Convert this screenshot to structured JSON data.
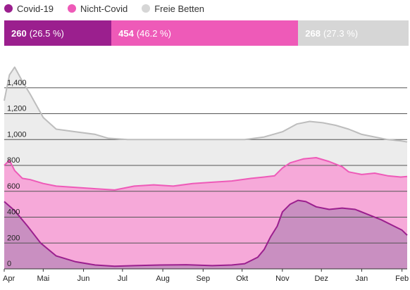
{
  "legend": [
    {
      "label": "Covid-19",
      "color": "#9b1f8e"
    },
    {
      "label": "Nicht-Covid",
      "color": "#ee5ab8"
    },
    {
      "label": "Freie Betten",
      "color": "#d6d6d6"
    }
  ],
  "summary_bar": {
    "covid": {
      "count": "260",
      "pct": "(26.5 %)",
      "fraction": 0.265,
      "color": "#9b1f8e"
    },
    "non_covid": {
      "count": "454",
      "pct": "(46.2 %)",
      "fraction": 0.462,
      "color": "#ee5ab8"
    },
    "free": {
      "count": "268",
      "pct": "(27.3 %)",
      "fraction": 0.273,
      "color": "#d6d6d6"
    }
  },
  "chart_data": {
    "type": "area",
    "stacked": true,
    "ylim": [
      0,
      1600
    ],
    "y_ticks": [
      0,
      200,
      400,
      600,
      800,
      1000,
      1200,
      1400
    ],
    "y_tick_labels": [
      "0",
      "200",
      "400",
      "600",
      "800",
      "1,000",
      "1,200",
      "1,400"
    ],
    "x_range": [
      0,
      310
    ],
    "x_ticks": [
      {
        "label": "Apr",
        "day": 0
      },
      {
        "label": "Mai",
        "day": 30
      },
      {
        "label": "Jun",
        "day": 61
      },
      {
        "label": "Jul",
        "day": 91
      },
      {
        "label": "Aug",
        "day": 122
      },
      {
        "label": "Sep",
        "day": 153
      },
      {
        "label": "Okt",
        "day": 183
      },
      {
        "label": "Nov",
        "day": 214
      },
      {
        "label": "Dez",
        "day": 244
      },
      {
        "label": "Jan",
        "day": 275
      },
      {
        "label": "Feb",
        "day": 306
      }
    ],
    "grid": "horizontal",
    "series": [
      {
        "name": "Covid-19",
        "color": "#9b1f8e",
        "fill": "#c98fc1",
        "x": [
          0,
          8,
          18,
          28,
          40,
          55,
          70,
          85,
          100,
          120,
          140,
          160,
          175,
          185,
          195,
          200,
          205,
          210,
          214,
          220,
          226,
          232,
          240,
          250,
          260,
          270,
          280,
          290,
          300,
          306,
          310
        ],
        "y": [
          520,
          450,
          330,
          200,
          100,
          55,
          30,
          20,
          25,
          30,
          32,
          25,
          30,
          40,
          90,
          150,
          250,
          330,
          440,
          500,
          530,
          520,
          480,
          460,
          470,
          460,
          420,
          380,
          330,
          300,
          260
        ]
      },
      {
        "name": "Total Covid-19 + Nicht-Covid",
        "color": "#ee5ab8",
        "fill": "#f6a9d9",
        "x": [
          0,
          4,
          8,
          14,
          20,
          30,
          40,
          55,
          70,
          85,
          100,
          115,
          130,
          145,
          160,
          175,
          190,
          200,
          208,
          214,
          220,
          230,
          240,
          250,
          260,
          265,
          275,
          285,
          295,
          305,
          310
        ],
        "y": [
          800,
          840,
          760,
          700,
          690,
          660,
          640,
          630,
          620,
          610,
          640,
          650,
          640,
          660,
          670,
          680,
          700,
          710,
          720,
          780,
          820,
          850,
          860,
          830,
          790,
          750,
          730,
          740,
          720,
          710,
          714
        ]
      },
      {
        "name": "Total inkl. Freie Betten",
        "color": "#bdbdbd",
        "fill": "#ececec",
        "x": [
          0,
          4,
          8,
          14,
          20,
          30,
          40,
          55,
          70,
          80,
          95,
          110,
          130,
          150,
          170,
          185,
          200,
          214,
          225,
          235,
          245,
          255,
          265,
          275,
          285,
          295,
          305,
          310
        ],
        "y": [
          1300,
          1500,
          1560,
          1450,
          1350,
          1170,
          1080,
          1060,
          1040,
          1010,
          1000,
          1000,
          1000,
          1000,
          1000,
          1000,
          1020,
          1060,
          1120,
          1140,
          1130,
          1110,
          1080,
          1040,
          1020,
          1000,
          990,
          982
        ]
      }
    ]
  }
}
